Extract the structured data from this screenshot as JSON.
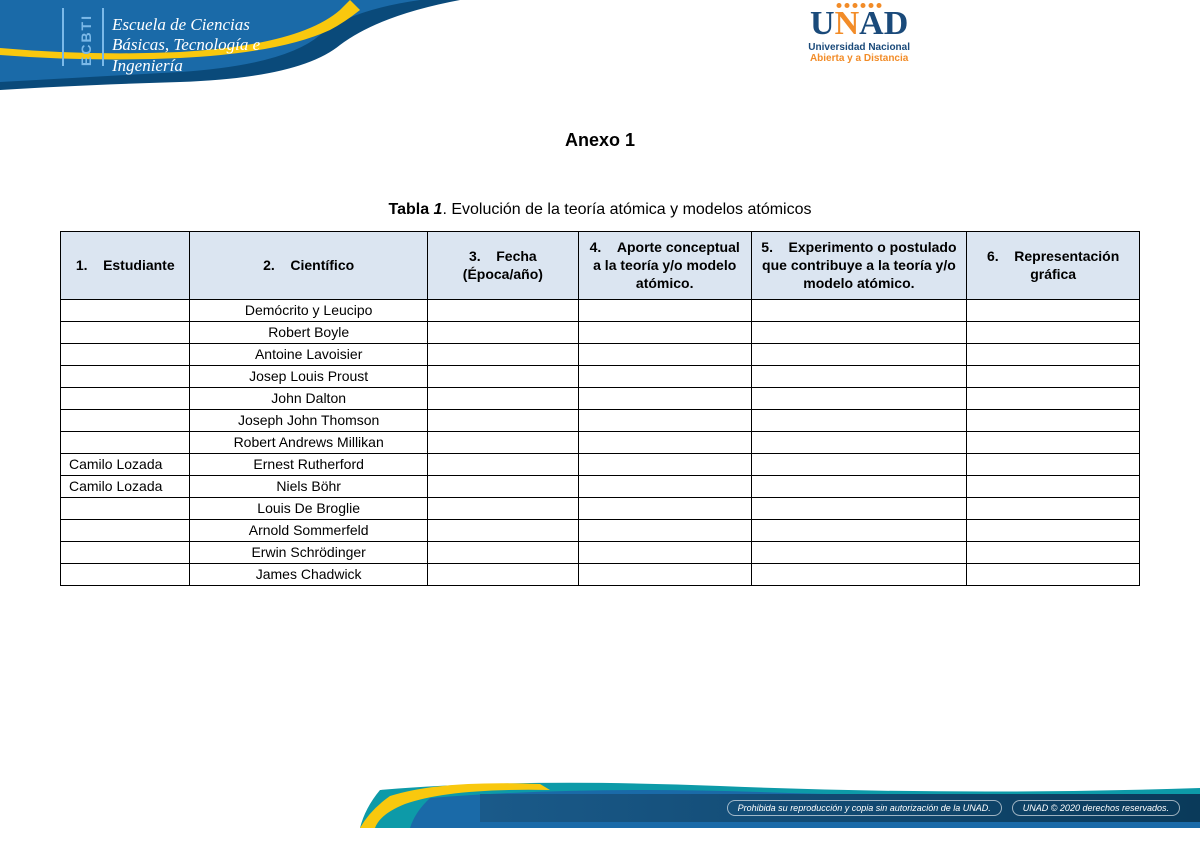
{
  "header": {
    "ecbti_vertical": "ECBTI",
    "school_line1": "Escuela de Ciencias",
    "school_line2": "Básicas, Tecnología e",
    "school_line3": "Ingeniería",
    "banner_colors": {
      "dark_blue": "#0a4a7a",
      "mid_blue": "#1a6aa8",
      "light_blue": "#7bb9e8",
      "yellow": "#f9c80e"
    },
    "unad": {
      "u": "U",
      "n": "N",
      "a": "A",
      "d": "D",
      "sub1": "Universidad Nacional",
      "sub2": "Abierta y a Distancia",
      "colors": {
        "blue": "#1a4a7a",
        "orange": "#f28c28"
      }
    }
  },
  "document": {
    "anexo_title": "Anexo 1",
    "table_caption_label": "Tabla ",
    "table_caption_num": "1",
    "table_caption_rest": ". Evolución de la teoría atómica y modelos atómicos"
  },
  "table": {
    "header_bg": "#dbe5f1",
    "border_color": "#000000",
    "column_widths_pct": [
      12,
      22,
      14,
      16,
      20,
      16
    ],
    "columns": [
      {
        "num": "1.",
        "label": "Estudiante"
      },
      {
        "num": "2.",
        "label": "Científico"
      },
      {
        "num": "3.",
        "label": "Fecha (Época/año)"
      },
      {
        "num": "4.",
        "label": "Aporte conceptual a la teoría y/o modelo atómico."
      },
      {
        "num": "5.",
        "label": "Experimento o postulado que contribuye a la teoría y/o modelo atómico."
      },
      {
        "num": "6.",
        "label": "Representación gráfica"
      }
    ],
    "rows": [
      {
        "estudiante": "",
        "cientifico": "Demócrito y Leucipo",
        "fecha": "",
        "aporte": "",
        "experimento": "",
        "grafica": ""
      },
      {
        "estudiante": "",
        "cientifico": "Robert Boyle",
        "fecha": "",
        "aporte": "",
        "experimento": "",
        "grafica": ""
      },
      {
        "estudiante": "",
        "cientifico": "Antoine Lavoisier",
        "fecha": "",
        "aporte": "",
        "experimento": "",
        "grafica": ""
      },
      {
        "estudiante": "",
        "cientifico": "Josep Louis Proust",
        "fecha": "",
        "aporte": "",
        "experimento": "",
        "grafica": ""
      },
      {
        "estudiante": "",
        "cientifico": "John Dalton",
        "fecha": "",
        "aporte": "",
        "experimento": "",
        "grafica": ""
      },
      {
        "estudiante": "",
        "cientifico": "Joseph John Thomson",
        "fecha": "",
        "aporte": "",
        "experimento": "",
        "grafica": ""
      },
      {
        "estudiante": "",
        "cientifico": "Robert Andrews Millikan",
        "fecha": "",
        "aporte": "",
        "experimento": "",
        "grafica": ""
      },
      {
        "estudiante": "Camilo Lozada",
        "cientifico": "Ernest Rutherford",
        "fecha": "",
        "aporte": "",
        "experimento": "",
        "grafica": ""
      },
      {
        "estudiante": "Camilo Lozada",
        "cientifico": "Niels Böhr",
        "fecha": "",
        "aporte": "",
        "experimento": "",
        "grafica": ""
      },
      {
        "estudiante": "",
        "cientifico": "Louis De Broglie",
        "fecha": "",
        "aporte": "",
        "experimento": "",
        "grafica": ""
      },
      {
        "estudiante": "",
        "cientifico": "Arnold Sommerfeld",
        "fecha": "",
        "aporte": "",
        "experimento": "",
        "grafica": ""
      },
      {
        "estudiante": "",
        "cientifico": "Erwin Schrödinger",
        "fecha": "",
        "aporte": "",
        "experimento": "",
        "grafica": ""
      },
      {
        "estudiante": "",
        "cientifico": "James Chadwick",
        "fecha": "",
        "aporte": "",
        "experimento": "",
        "grafica": ""
      }
    ]
  },
  "footer": {
    "text1": "Prohibida su reproducción y copia sin autorización de la UNAD.",
    "text2": "UNAD © 2020 derechos reservados.",
    "bar_gradient_from": "#1a5a8a",
    "bar_gradient_to": "#0a3a5a",
    "accent_teal": "#0d9aa8",
    "accent_yellow": "#f9c80e"
  }
}
